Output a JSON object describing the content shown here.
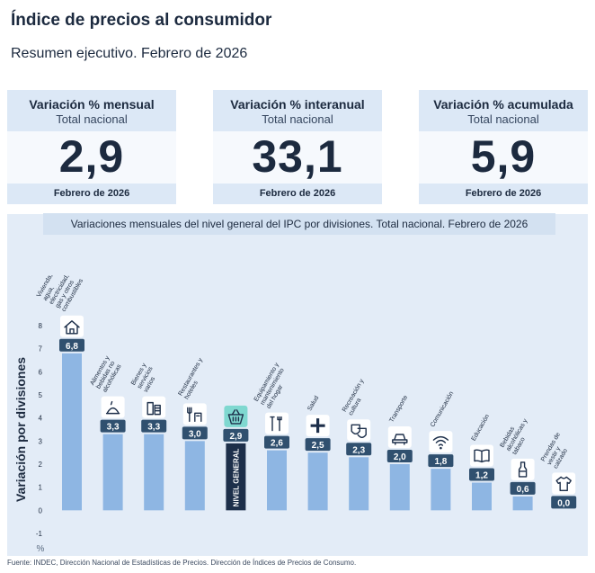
{
  "header": {
    "title": "Índice de precios al consumidor",
    "subtitle": "Resumen ejecutivo. Febrero de 2026"
  },
  "cards": [
    {
      "label": "Variación % mensual",
      "sub": "Total nacional",
      "value": "2,9",
      "foot": "Febrero de 2026"
    },
    {
      "label": "Variación % interanual",
      "sub": "Total nacional",
      "value": "33,1",
      "foot": "Febrero de 2026"
    },
    {
      "label": "Variación % acumulada",
      "sub": "Total nacional",
      "value": "5,9",
      "foot": "Febrero de 2026"
    }
  ],
  "colors": {
    "bar": "#8eb6e3",
    "highlight": "#1d2f4a",
    "label_box": "#30506f",
    "text": "#1c2a3f",
    "panel": "#e3ecf7"
  },
  "chart_data": {
    "type": "bar",
    "title": "Variaciones mensuales del nivel general del IPC por divisiones. Total nacional. Febrero de 2026",
    "ylabel": "Variación por divisiones",
    "yunit": "%",
    "ylim": [
      -1,
      8
    ],
    "yticks": [
      -1,
      0,
      1,
      2,
      3,
      4,
      5,
      6,
      7,
      8
    ],
    "grid": false,
    "categories": [
      "Vivienda, agua, electricidad, gas y otros combustibles",
      "Alimentos y bebidas no alcohólicas",
      "Bienes y servicios varios",
      "Restaurantes y hoteles",
      "NIVEL GENERAL",
      "Equipamiento y mantenimiento del hogar",
      "Salud",
      "Recreación y cultura",
      "Transporte",
      "Comunicación",
      "Educación",
      "Bebidas alcohólicas y tabaco",
      "Prendas de vestir y calzado"
    ],
    "values": [
      6.8,
      3.3,
      3.3,
      3.0,
      2.9,
      2.6,
      2.5,
      2.3,
      2.0,
      1.8,
      1.2,
      0.6,
      0.0
    ],
    "value_labels": [
      "6,8",
      "3,3",
      "3,3",
      "3,0",
      "2,9",
      "2,6",
      "2,5",
      "2,3",
      "2,0",
      "1,8",
      "1,2",
      "0,6",
      "0,0"
    ],
    "highlight": "NIVEL GENERAL",
    "icons": [
      "house-icon",
      "food-icon",
      "products-icon",
      "restaurant-icon",
      "basket-icon",
      "tools-icon",
      "health-cross-icon",
      "theater-masks-icon",
      "car-icon",
      "wifi-icon",
      "book-icon",
      "bottle-icon",
      "shirt-icon"
    ]
  },
  "source": "Fuente: INDEC, Dirección Nacional de Estadísticas de Precios. Dirección de Índices de Precios de Consumo."
}
